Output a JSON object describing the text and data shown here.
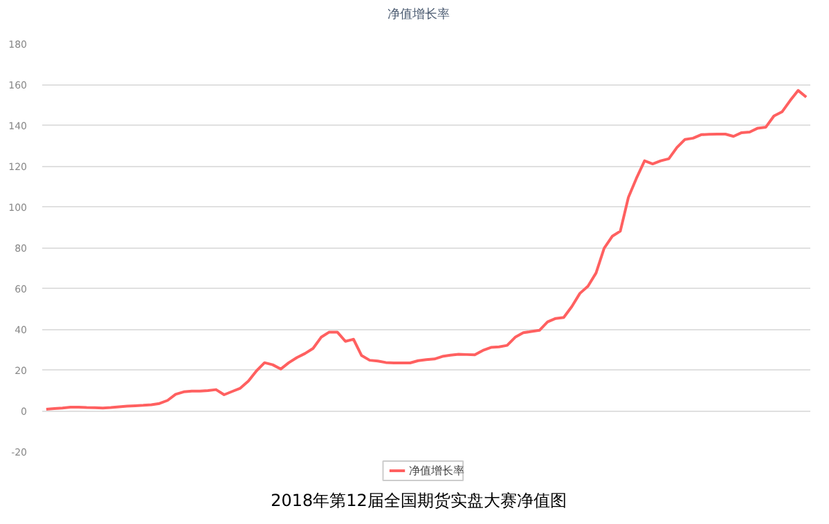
{
  "chart_data": {
    "type": "line",
    "title": "净值增长率",
    "annotations": [
      "2018年第12届全国期货实盘大赛净值图"
    ],
    "categories": [
      null,
      null,
      null,
      null,
      null,
      null,
      null,
      null,
      null,
      null,
      null,
      null,
      null,
      null,
      null,
      null,
      null,
      null,
      null,
      null,
      null,
      null,
      null,
      null,
      null,
      null,
      null,
      null,
      null,
      null,
      null,
      null,
      null,
      null,
      null,
      null,
      null,
      null,
      null,
      null,
      null,
      null,
      null,
      null,
      null,
      null,
      null,
      null,
      null,
      null,
      null,
      null,
      null,
      null,
      null,
      null,
      null,
      null,
      null,
      null,
      null,
      null,
      null,
      null,
      null,
      null,
      null,
      null,
      null,
      null,
      null,
      null,
      null,
      null,
      null,
      null,
      null,
      null,
      null,
      null,
      null,
      null,
      null,
      null,
      null,
      null,
      null,
      null,
      null,
      null,
      null,
      null,
      null,
      null,
      null
    ],
    "series": [
      {
        "name": "净值增长率",
        "color": "#ff6060",
        "values": [
          0.7,
          1.0,
          1.3,
          1.7,
          1.7,
          1.5,
          1.4,
          1.3,
          1.5,
          1.9,
          2.2,
          2.4,
          2.6,
          2.9,
          3.5,
          5,
          8,
          9.2,
          9.6,
          9.6,
          9.8,
          10.3,
          7.8,
          9.4,
          11,
          14.5,
          19.5,
          23.5,
          22.5,
          20.4,
          23.5,
          26,
          28,
          30.5,
          36,
          38.5,
          38.5,
          34,
          35,
          27,
          24.7,
          24.3,
          23.6,
          23.4,
          23.4,
          23.4,
          24.5,
          25,
          25.3,
          26.6,
          27.2,
          27.6,
          27.5,
          27.4,
          29.5,
          31,
          31.3,
          32,
          36,
          38.2,
          38.8,
          39.4,
          43.5,
          45.2,
          45.7,
          51,
          57.5,
          61,
          67.5,
          79.6,
          85.5,
          88,
          104.6,
          114,
          122.5,
          121,
          122.5,
          123.5,
          129,
          133,
          133.6,
          135.3,
          135.5,
          135.6,
          135.6,
          134.5,
          136.3,
          136.6,
          138.5,
          139,
          144.5,
          146.5,
          152,
          157,
          153.7
        ]
      }
    ],
    "ylim": [
      -20,
      180
    ],
    "yticks": [
      -20,
      0,
      20,
      40,
      60,
      80,
      100,
      120,
      140,
      160,
      180
    ],
    "grid": "y",
    "legend": "bottom",
    "marker": "none",
    "line_style": "solid",
    "tick_labels": "y"
  }
}
